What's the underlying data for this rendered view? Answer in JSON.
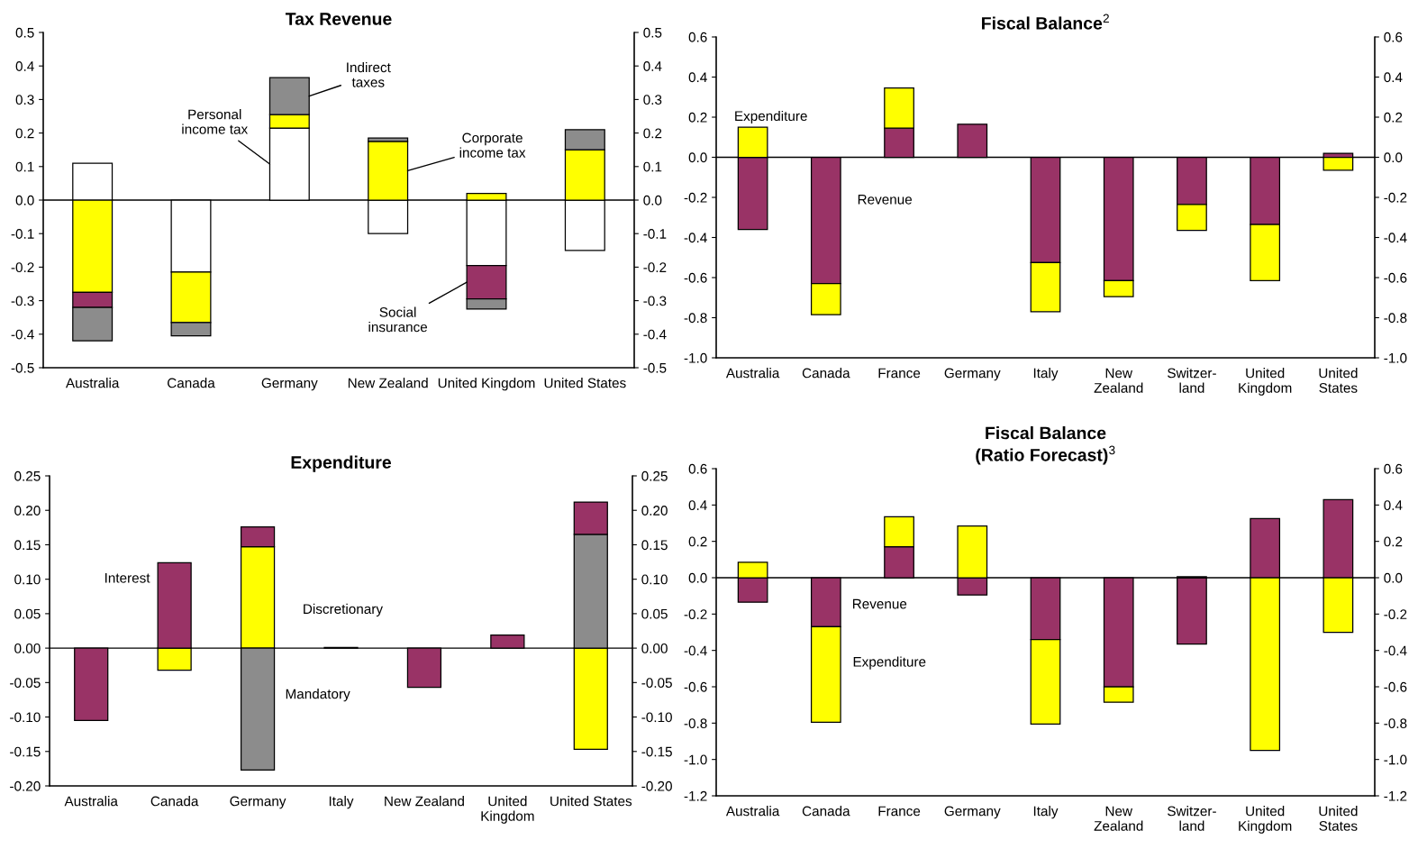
{
  "chart_data": [
    {
      "type": "bar",
      "stacked": true,
      "title": "Tax Revenue",
      "categories": [
        "Australia",
        "Canada",
        "Germany",
        "New Zealand",
        "United Kingdom",
        "United States"
      ],
      "series": [
        {
          "name": "Personal\nincome tax",
          "color": "#ffffff",
          "values": [
            0.11,
            -0.215,
            0.215,
            -0.1,
            -0.195,
            -0.15
          ]
        },
        {
          "name": "Corporate\nincome tax",
          "color": "#ffff00",
          "values": [
            -0.275,
            -0.15,
            0.04,
            0.175,
            0.02,
            0.15
          ]
        },
        {
          "name": "Social\ninsurance",
          "color": "#993366",
          "values": [
            -0.045,
            null,
            null,
            null,
            -0.1,
            null
          ]
        },
        {
          "name": "Indirect\ntaxes",
          "color": "#8c8c8c",
          "values": [
            -0.1,
            -0.04,
            0.11,
            0.01,
            -0.03,
            0.06
          ]
        }
      ],
      "ylim": [
        -0.5,
        0.5
      ],
      "yticks": [
        -0.5,
        -0.4,
        -0.3,
        -0.2,
        -0.1,
        {
          "value": 0,
          "label": "0.0"
        },
        0.1,
        0.2,
        0.3,
        0.4,
        0.5
      ],
      "y2lim": [
        -0.5,
        0.5
      ],
      "y2ticks": [
        -0.5,
        -0.4,
        -0.3,
        -0.2,
        -0.1,
        {
          "value": 0,
          "label": "0.0"
        },
        0.1,
        0.2,
        0.3,
        0.4,
        0.5
      ],
      "ref_lines": [
        {
          "axis": "y",
          "value": 0.0,
          "color": "#000000"
        }
      ]
    },
    {
      "type": "bar",
      "stacked": true,
      "title": "Fiscal Balance$^{2}$",
      "categories": [
        "Australia",
        "Canada",
        "France",
        "Germany",
        "Italy",
        "New\nZealand",
        "Switzer-\nland",
        "United\nKingdom",
        "United\nStates"
      ],
      "series": [
        {
          "name": "Revenue",
          "color": "#993366",
          "values": [
            -0.36,
            -0.63,
            0.145,
            0.165,
            -0.525,
            -0.615,
            -0.235,
            -0.335,
            0.02
          ]
        },
        {
          "name": "Expenditure",
          "color": "#ffff00",
          "values": [
            0.15,
            -0.155,
            0.2,
            null,
            -0.245,
            -0.08,
            -0.13,
            -0.28,
            -0.065
          ]
        }
      ],
      "ylim": [
        -1.0,
        0.6
      ],
      "yticks": [
        {
          "value": -1,
          "label": "-1.0"
        },
        -0.8,
        -0.6,
        -0.4,
        -0.2,
        {
          "value": 0,
          "label": "0.0"
        },
        0.2,
        0.4,
        0.6
      ],
      "y2lim": [
        -1.0,
        0.6
      ],
      "y2ticks": [
        {
          "value": -1,
          "label": "-1.0"
        },
        -0.8,
        -0.6,
        -0.4,
        -0.2,
        {
          "value": 0,
          "label": "0.0"
        },
        0.2,
        0.4,
        0.6
      ],
      "ref_lines": [
        {
          "axis": "y",
          "value": 0.0,
          "color": "#000000"
        }
      ]
    },
    {
      "type": "bar",
      "stacked": true,
      "title": "Expenditure",
      "categories": [
        "Australia",
        "Canada",
        "Germany",
        "Italy",
        "New Zealand",
        "United\nKingdom",
        "United States"
      ],
      "series": [
        {
          "name": "Discretionary",
          "color": "#ffff00",
          "values": [
            null,
            -0.032,
            0.147,
            null,
            null,
            null,
            -0.147
          ]
        },
        {
          "name": "Mandatory",
          "color": "#8c8c8c",
          "values": [
            null,
            null,
            -0.177,
            null,
            null,
            null,
            0.165
          ]
        },
        {
          "name": "Interest",
          "color": "#993366",
          "values": [
            -0.105,
            0.124,
            0.029,
            0.001,
            -0.057,
            0.019,
            0.047
          ]
        }
      ],
      "ylim": [
        -0.2,
        0.25
      ],
      "yticks": [
        {
          "value": -0.2,
          "label": "-0.20"
        },
        {
          "value": -0.15,
          "label": "-0.15"
        },
        {
          "value": -0.1,
          "label": "-0.10"
        },
        {
          "value": -0.05,
          "label": "-0.05"
        },
        {
          "value": 0.0,
          "label": "0.00"
        },
        {
          "value": 0.05,
          "label": "0.05"
        },
        {
          "value": 0.1,
          "label": "0.10"
        },
        {
          "value": 0.15,
          "label": "0.15"
        },
        {
          "value": 0.2,
          "label": "0.20"
        },
        {
          "value": 0.25,
          "label": "0.25"
        }
      ],
      "y2lim": [
        -0.2,
        0.25
      ],
      "y2ticks": [
        {
          "value": -0.2,
          "label": "-0.20"
        },
        {
          "value": -0.15,
          "label": "-0.15"
        },
        {
          "value": -0.1,
          "label": "-0.10"
        },
        {
          "value": -0.05,
          "label": "-0.05"
        },
        {
          "value": 0.0,
          "label": "0.00"
        },
        {
          "value": 0.05,
          "label": "0.05"
        },
        {
          "value": 0.1,
          "label": "0.10"
        },
        {
          "value": 0.15,
          "label": "0.15"
        },
        {
          "value": 0.2,
          "label": "0.20"
        },
        {
          "value": 0.25,
          "label": "0.25"
        }
      ],
      "ref_lines": [
        {
          "axis": "y",
          "value": 0.0,
          "color": "#000000"
        }
      ]
    },
    {
      "type": "bar",
      "stacked": true,
      "title": "Fiscal Balance\n(Ratio Forecast)$^{3}$",
      "categories": [
        "Australia",
        "Canada",
        "France",
        "Germany",
        "Italy",
        "New\nZealand",
        "Switzer-\nland",
        "United\nKingdom",
        "United\nStates"
      ],
      "series": [
        {
          "name": "Revenue",
          "color": "#993366",
          "values": [
            -0.135,
            -0.27,
            0.17,
            -0.095,
            -0.34,
            -0.6,
            -0.365,
            0.325,
            0.43
          ]
        },
        {
          "name": "Expenditure",
          "color": "#ffff00",
          "values": [
            0.085,
            -0.525,
            0.165,
            0.285,
            -0.465,
            -0.085,
            0.005,
            -0.95,
            -0.3
          ]
        }
      ],
      "ylim": [
        -1.2,
        0.6
      ],
      "yticks": [
        -1.2,
        {
          "value": -1,
          "label": "-1.0"
        },
        -0.8,
        -0.6,
        -0.4,
        -0.2,
        {
          "value": 0,
          "label": "0.0"
        },
        0.2,
        0.4,
        0.6
      ],
      "y2lim": [
        -1.2,
        0.6
      ],
      "y2ticks": [
        -1.2,
        {
          "value": -1,
          "label": "-1.0"
        },
        -0.8,
        -0.6,
        -0.4,
        -0.2,
        {
          "value": 0,
          "label": "0.0"
        },
        0.2,
        0.4,
        0.6
      ],
      "ref_lines": [
        {
          "axis": "y",
          "value": 0.0,
          "color": "#000000"
        }
      ]
    }
  ]
}
